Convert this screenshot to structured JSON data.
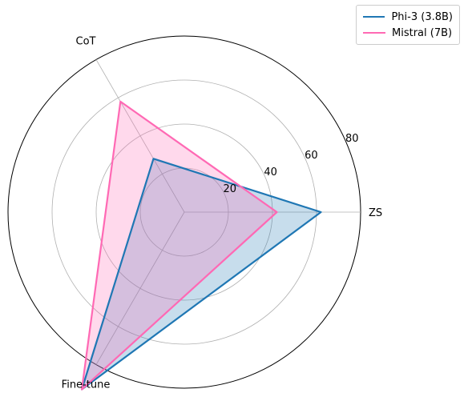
{
  "chart_data": {
    "type": "radar",
    "categories": [
      "ZS",
      "CoT",
      "Fine-tune"
    ],
    "series": [
      {
        "name": "Phi-3 (3.8B)",
        "values": [
          62,
          28,
          93
        ],
        "color": "#1f77b4",
        "fill": "#1f77b4"
      },
      {
        "name": "Mistral (7B)",
        "values": [
          42,
          58,
          93
        ],
        "color": "#ff69b4",
        "fill": "#ff69b4"
      }
    ],
    "rlim": [
      0,
      80
    ],
    "r_ticks": [
      20,
      40,
      60,
      80
    ],
    "grid": true,
    "legend_position": "top-right"
  }
}
